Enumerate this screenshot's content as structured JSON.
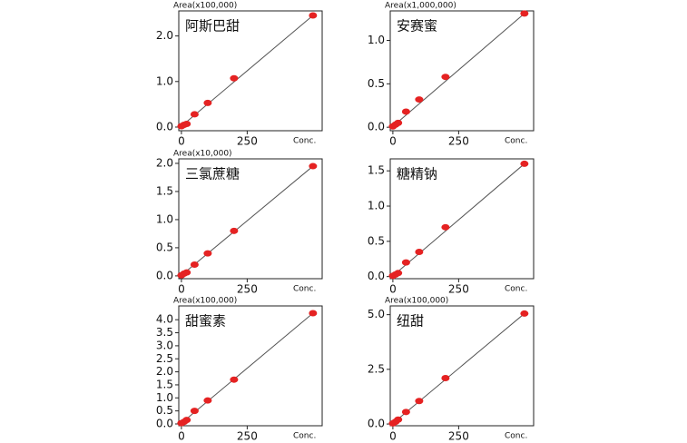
{
  "chart_data": [
    {
      "type": "scatter",
      "title": "阿斯巴甜",
      "y_label": "Area(x100,000)",
      "x_label": "Conc.",
      "x": [
        0,
        10,
        20,
        50,
        100,
        200,
        500
      ],
      "y": [
        0.02,
        0.05,
        0.07,
        0.28,
        0.53,
        1.07,
        2.45
      ],
      "color": "#e52222",
      "xlim": [
        -10,
        535
      ],
      "xticks": [
        0,
        250
      ],
      "ylim": [
        -0.08,
        2.55
      ],
      "yticks": [
        {
          "value": 0,
          "label": "0.0"
        },
        {
          "value": 1,
          "label": "1.0"
        },
        {
          "value": 2,
          "label": "2.0"
        }
      ]
    },
    {
      "type": "scatter",
      "title": "安赛蜜",
      "y_label": "Area(x1,000,000)",
      "x_label": "Conc.",
      "x": [
        0,
        10,
        20,
        50,
        100,
        200,
        500
      ],
      "y": [
        0.01,
        0.03,
        0.05,
        0.18,
        0.32,
        0.58,
        1.31
      ],
      "color": "#e52222",
      "xlim": [
        -10,
        535
      ],
      "xticks": [
        0,
        250
      ],
      "ylim": [
        -0.04,
        1.34
      ],
      "yticks": [
        {
          "value": 0,
          "label": "0.0"
        },
        0.5,
        {
          "value": 1,
          "label": "1.0"
        }
      ]
    },
    {
      "type": "scatter",
      "title": "三氯蔗糖",
      "y_label": "Area(x10,000)",
      "x_label": "Conc.",
      "x": [
        0,
        10,
        20,
        50,
        100,
        200,
        500
      ],
      "y": [
        0.01,
        0.04,
        0.06,
        0.2,
        0.4,
        0.8,
        1.95
      ],
      "color": "#e52222",
      "xlim": [
        -10,
        535
      ],
      "xticks": [
        0,
        250
      ],
      "ylim": [
        -0.05,
        2.08
      ],
      "yticks": [
        {
          "value": 0,
          "label": "0.0"
        },
        0.5,
        {
          "value": 1,
          "label": "1.0"
        },
        1.5,
        {
          "value": 2,
          "label": "2.0"
        }
      ]
    },
    {
      "type": "scatter",
      "title": "糖精钠",
      "x_label": "Conc.",
      "x": [
        0,
        10,
        20,
        50,
        100,
        200,
        500
      ],
      "y": [
        0.01,
        0.03,
        0.05,
        0.2,
        0.35,
        0.7,
        1.6
      ],
      "color": "#e52222",
      "xlim": [
        -10,
        535
      ],
      "xticks": [
        0,
        250
      ],
      "ylim": [
        -0.03,
        1.67
      ],
      "yticks": [
        {
          "value": 0,
          "label": "0.0"
        },
        0.5,
        {
          "value": 1,
          "label": "1.0"
        },
        1.5
      ]
    },
    {
      "type": "scatter",
      "title": "甜蜜素",
      "y_label": "Area(x100,000)",
      "x_label": "Conc.",
      "x": [
        0,
        10,
        20,
        50,
        100,
        200,
        500
      ],
      "y": [
        0.03,
        0.08,
        0.15,
        0.5,
        0.9,
        1.7,
        4.25
      ],
      "color": "#e52222",
      "xlim": [
        -10,
        535
      ],
      "xticks": [
        0,
        250
      ],
      "ylim": [
        -0.07,
        4.53
      ],
      "yticks": [
        {
          "value": 0,
          "label": "0.0"
        },
        0.5,
        {
          "value": 1,
          "label": "1.0"
        },
        1.5,
        {
          "value": 2,
          "label": "2.0"
        },
        2.5,
        {
          "value": 3,
          "label": "3.0"
        },
        3.5,
        {
          "value": 4,
          "label": "4.0"
        }
      ]
    },
    {
      "type": "scatter",
      "title": "纽甜",
      "y_label": "Area(x100,000)",
      "x_label": "Conc.",
      "x": [
        0,
        10,
        20,
        50,
        100,
        200,
        500
      ],
      "y": [
        0.03,
        0.1,
        0.2,
        0.55,
        1.05,
        2.1,
        5.05
      ],
      "color": "#e52222",
      "xlim": [
        -10,
        535
      ],
      "xticks": [
        0,
        250
      ],
      "ylim": [
        -0.08,
        5.4
      ],
      "yticks": [
        {
          "value": 0,
          "label": "0.0"
        },
        2.5,
        {
          "value": 5,
          "label": "5.0"
        }
      ]
    }
  ]
}
